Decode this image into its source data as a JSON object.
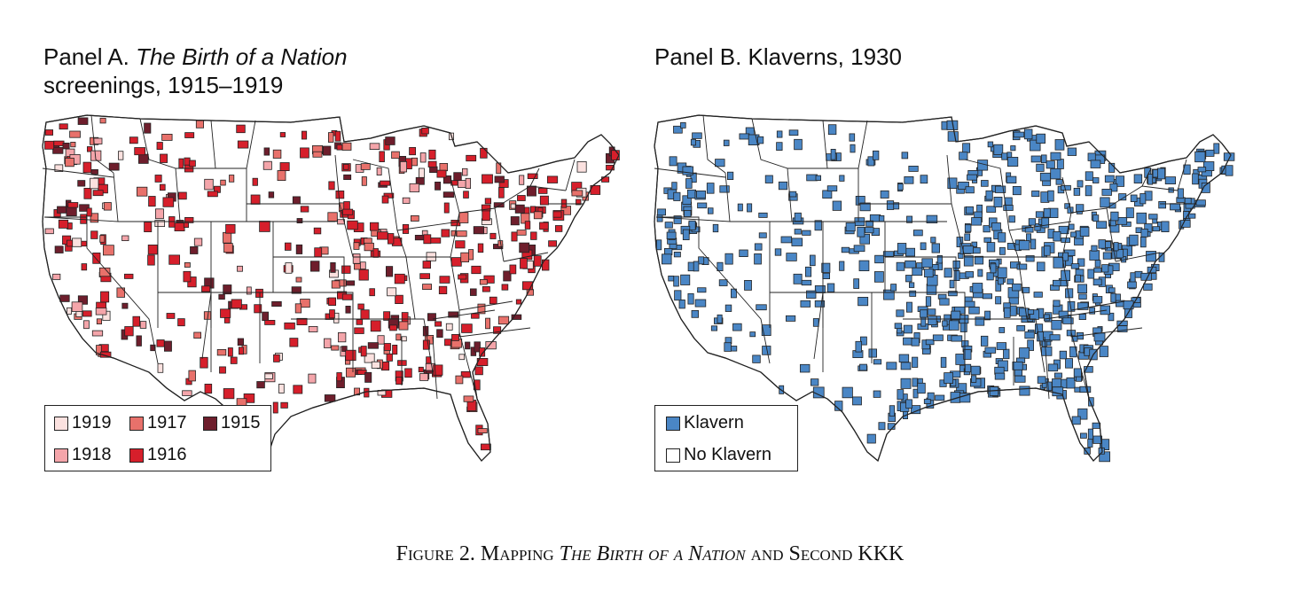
{
  "panel_a": {
    "title_prefix": "Panel A. ",
    "title_italic": "The Birth of a Nation",
    "title_line2": "screenings, 1915–1919",
    "legend": [
      {
        "label": "1919",
        "color": "#fbe1df"
      },
      {
        "label": "1917",
        "color": "#e8716b"
      },
      {
        "label": "1915",
        "color": "#6e1e2c"
      },
      {
        "label": "1918",
        "color": "#f4a5aa"
      },
      {
        "label": "1916",
        "color": "#d61f2b"
      }
    ]
  },
  "panel_b": {
    "title": "Panel B. Klaverns, 1930",
    "legend": [
      {
        "label": "Klavern",
        "color": "#4a86c5"
      },
      {
        "label": "No Klavern",
        "color": "#ffffff"
      }
    ]
  },
  "caption": {
    "prefix": "Figure 2. Mapping ",
    "italic": "The Birth of a Nation",
    "suffix": " and Second KKK"
  },
  "colors": {
    "border": "#222222",
    "background": "#ffffff"
  }
}
